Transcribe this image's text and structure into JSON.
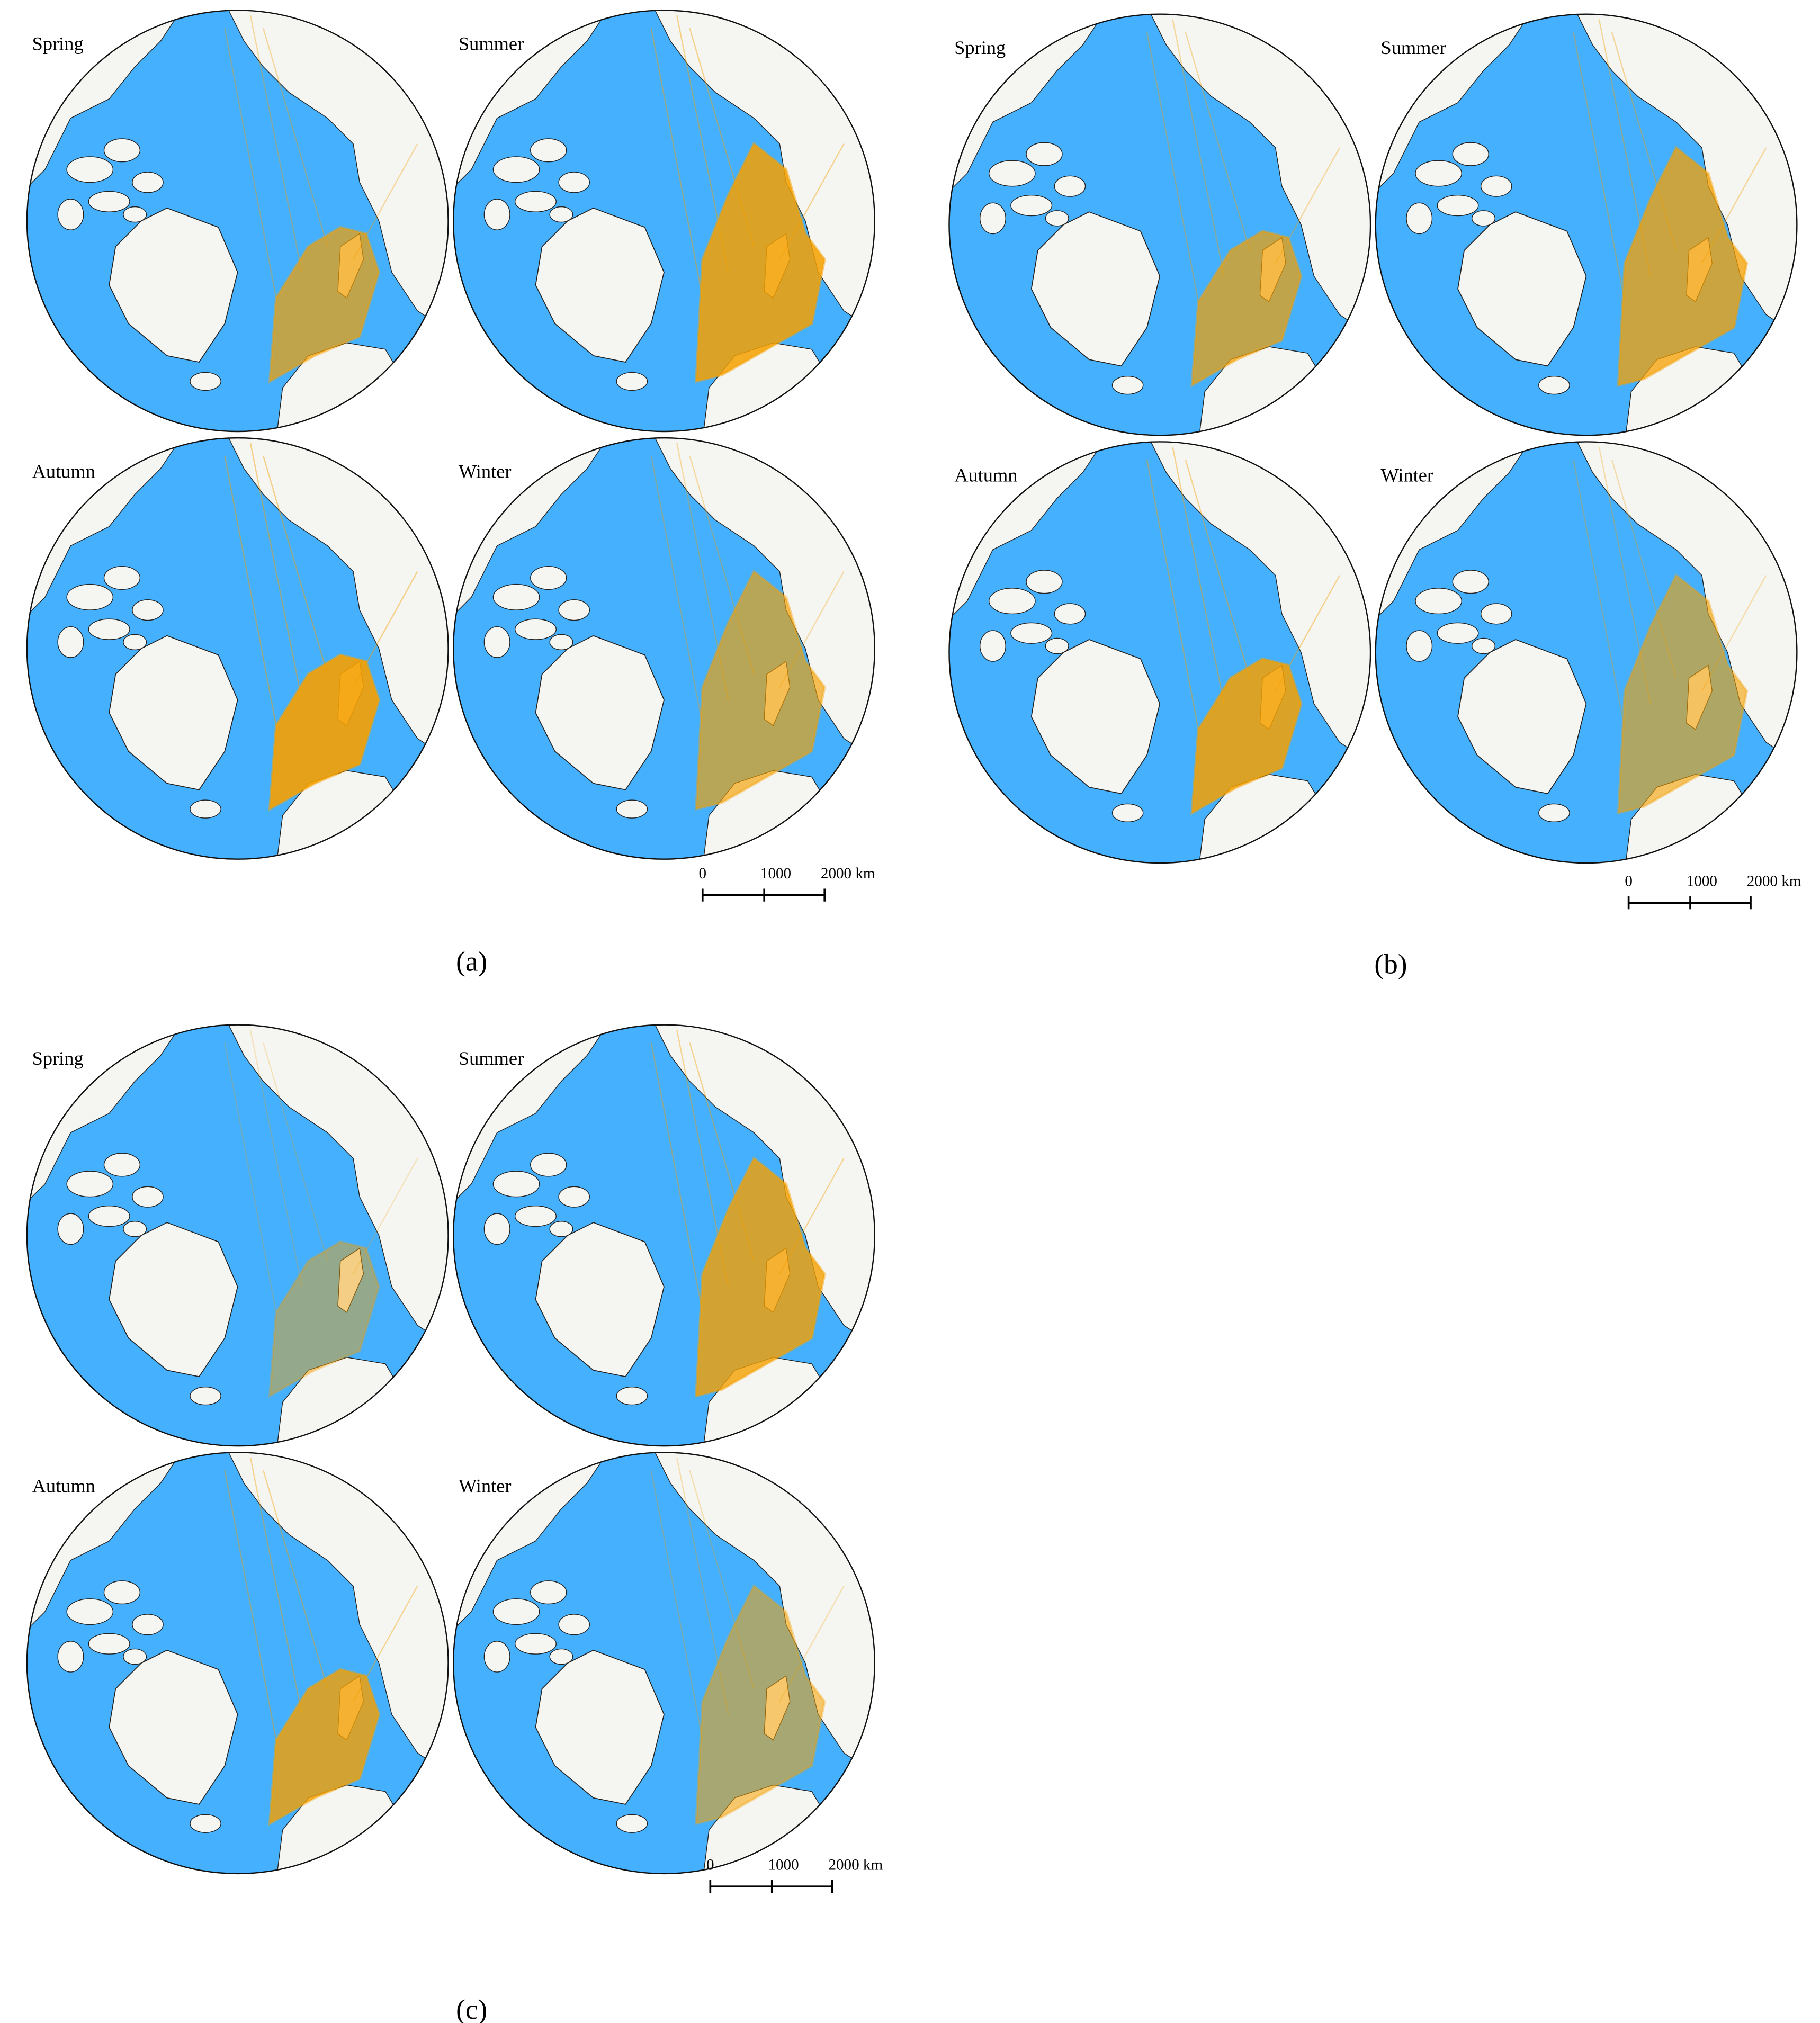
{
  "panels": [
    {
      "label": "(a)",
      "maps": [
        {
          "season": "Spring"
        },
        {
          "season": "Summer"
        },
        {
          "season": "Autumn"
        },
        {
          "season": "Winter"
        }
      ],
      "scale_bar": [
        "0",
        "1000",
        "2000 km"
      ]
    },
    {
      "label": "(b)",
      "maps": [
        {
          "season": "Spring"
        },
        {
          "season": "Summer"
        },
        {
          "season": "Autumn"
        },
        {
          "season": "Winter"
        }
      ],
      "scale_bar": [
        "0",
        "1000",
        "2000 km"
      ]
    },
    {
      "label": "(c)",
      "maps": [
        {
          "season": "Spring"
        },
        {
          "season": "Summer"
        },
        {
          "season": "Autumn"
        },
        {
          "season": "Winter"
        }
      ],
      "scale_bar": [
        "0",
        "1000",
        "2000 km"
      ]
    }
  ]
}
